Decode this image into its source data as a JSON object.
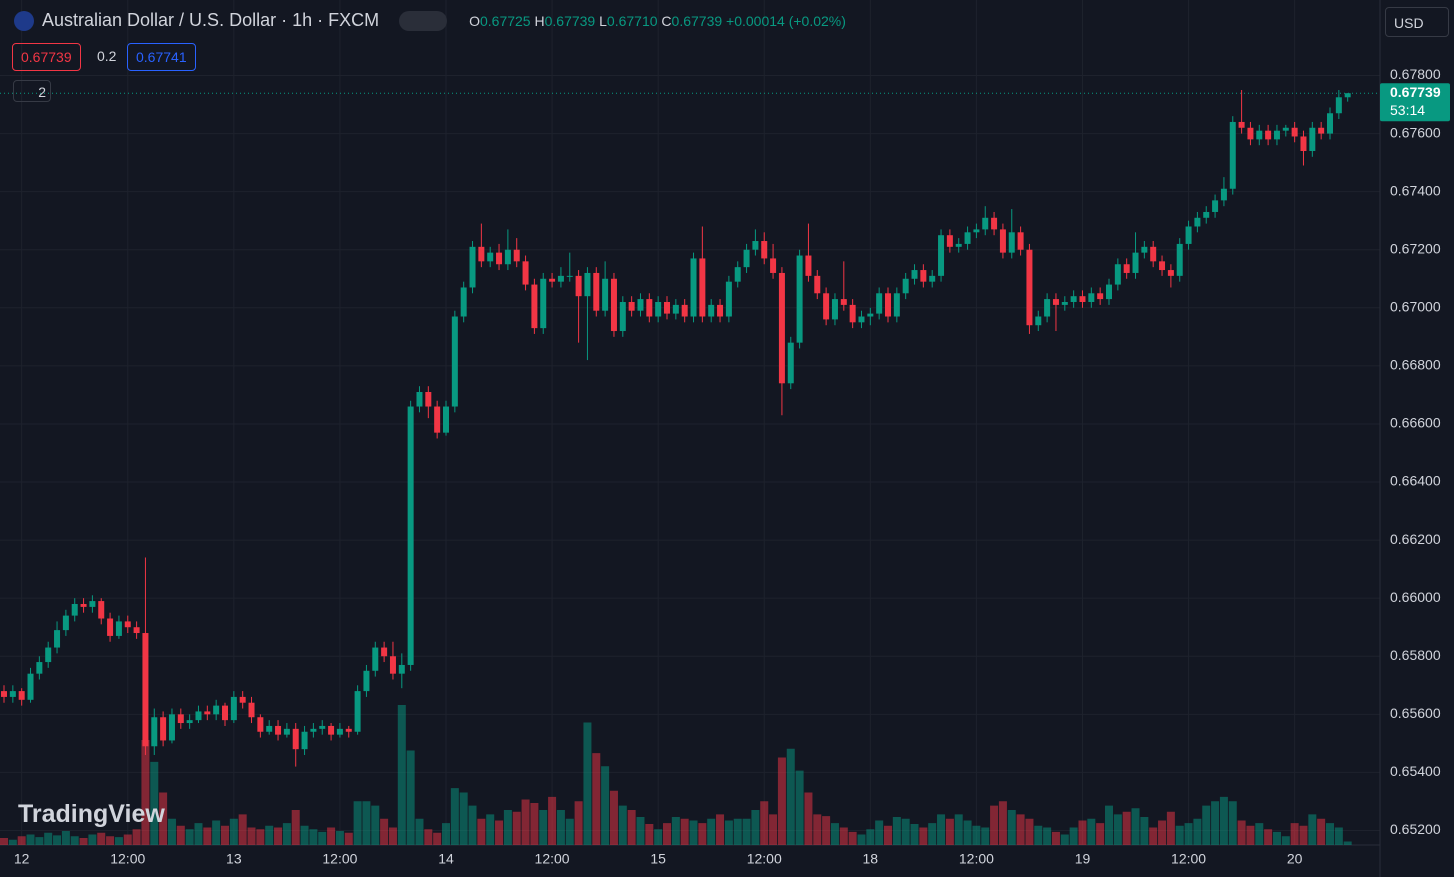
{
  "header": {
    "title": "Australian Dollar / U.S. Dollar · 1h · FXCM",
    "o_label": "O",
    "open": "0.67725",
    "h_label": "H",
    "high": "0.67739",
    "l_label": "L",
    "low": "0.67710",
    "c_label": "C",
    "close": "0.67739",
    "change": "+0.00014 (+0.02%)",
    "bid": "0.67739",
    "spread": "0.2",
    "ask": "0.67741",
    "indicators_count": "2",
    "currency": "USD",
    "logo": "TradingView"
  },
  "chart_data": {
    "type": "candlestick",
    "up_color": "#089981",
    "down_color": "#f23645",
    "grid": true,
    "last_price": {
      "value": 0.67739,
      "label": "0.67739"
    },
    "countdown": "53:14",
    "ylim": [
      0.6515,
      0.6806
    ],
    "yticks": [
      {
        "value": 0.652,
        "label": "0.65200"
      },
      {
        "value": 0.654,
        "label": "0.65400"
      },
      {
        "value": 0.656,
        "label": "0.65600"
      },
      {
        "value": 0.658,
        "label": "0.65800"
      },
      {
        "value": 0.66,
        "label": "0.66000"
      },
      {
        "value": 0.662,
        "label": "0.66200"
      },
      {
        "value": 0.664,
        "label": "0.66400"
      },
      {
        "value": 0.666,
        "label": "0.66600"
      },
      {
        "value": 0.668,
        "label": "0.66800"
      },
      {
        "value": 0.67,
        "label": "0.67000"
      },
      {
        "value": 0.672,
        "label": "0.67200"
      },
      {
        "value": 0.674,
        "label": "0.67400"
      },
      {
        "value": 0.676,
        "label": "0.67600"
      },
      {
        "value": 0.678,
        "label": "0.67800"
      }
    ],
    "categories": [
      null,
      null,
      "12",
      null,
      null,
      null,
      null,
      null,
      null,
      null,
      null,
      null,
      null,
      null,
      "12:00",
      null,
      null,
      null,
      null,
      null,
      null,
      null,
      null,
      null,
      null,
      null,
      "13",
      null,
      null,
      null,
      null,
      null,
      null,
      null,
      null,
      null,
      null,
      null,
      "12:00",
      null,
      null,
      null,
      null,
      null,
      null,
      null,
      null,
      null,
      null,
      null,
      "14",
      null,
      null,
      null,
      null,
      null,
      null,
      null,
      null,
      null,
      null,
      null,
      "12:00",
      null,
      null,
      null,
      null,
      null,
      null,
      null,
      null,
      null,
      null,
      null,
      "15",
      null,
      null,
      null,
      null,
      null,
      null,
      null,
      null,
      null,
      null,
      null,
      "12:00",
      null,
      null,
      null,
      null,
      null,
      null,
      null,
      null,
      null,
      null,
      null,
      "18",
      null,
      null,
      null,
      null,
      null,
      null,
      null,
      null,
      null,
      null,
      null,
      "12:00",
      null,
      null,
      null,
      null,
      null,
      null,
      null,
      null,
      null,
      null,
      null,
      "19",
      null,
      null,
      null,
      null,
      null,
      null,
      null,
      null,
      null,
      null,
      null,
      "12:00",
      null,
      null,
      null,
      null,
      null,
      null,
      null,
      null,
      null,
      null,
      null,
      "20",
      null,
      null,
      null,
      null,
      null,
      null
    ],
    "ohlc": [
      [
        0.6568,
        0.657,
        0.6564,
        0.6566
      ],
      [
        0.6566,
        0.657,
        0.6564,
        0.6568
      ],
      [
        0.6568,
        0.6569,
        0.6563,
        0.6565
      ],
      [
        0.6565,
        0.6576,
        0.6564,
        0.6574
      ],
      [
        0.6574,
        0.658,
        0.6572,
        0.6578
      ],
      [
        0.6578,
        0.6585,
        0.6576,
        0.6583
      ],
      [
        0.6583,
        0.6592,
        0.6581,
        0.6589
      ],
      [
        0.6589,
        0.6596,
        0.6587,
        0.6594
      ],
      [
        0.6594,
        0.66,
        0.6592,
        0.6598
      ],
      [
        0.6598,
        0.66,
        0.6595,
        0.6597
      ],
      [
        0.6597,
        0.6601,
        0.6595,
        0.6599
      ],
      [
        0.6599,
        0.66,
        0.6591,
        0.6593
      ],
      [
        0.6593,
        0.6595,
        0.6585,
        0.6587
      ],
      [
        0.6587,
        0.6594,
        0.6586,
        0.6592
      ],
      [
        0.6592,
        0.6594,
        0.6588,
        0.659
      ],
      [
        0.659,
        0.6592,
        0.6586,
        0.6588
      ],
      [
        0.6588,
        0.6614,
        0.6546,
        0.6549
      ],
      [
        0.6549,
        0.6562,
        0.6546,
        0.6559
      ],
      [
        0.6559,
        0.6561,
        0.6549,
        0.6551
      ],
      [
        0.6551,
        0.6562,
        0.655,
        0.656
      ],
      [
        0.656,
        0.6562,
        0.6555,
        0.6557
      ],
      [
        0.6557,
        0.656,
        0.6555,
        0.6558
      ],
      [
        0.6558,
        0.6563,
        0.6557,
        0.6561
      ],
      [
        0.6561,
        0.6563,
        0.6558,
        0.656
      ],
      [
        0.656,
        0.6565,
        0.6558,
        0.6563
      ],
      [
        0.6563,
        0.6564,
        0.6556,
        0.6558
      ],
      [
        0.6558,
        0.6568,
        0.6557,
        0.6566
      ],
      [
        0.6566,
        0.6568,
        0.6562,
        0.6564
      ],
      [
        0.6564,
        0.6566,
        0.6557,
        0.6559
      ],
      [
        0.6559,
        0.656,
        0.6552,
        0.6554
      ],
      [
        0.6554,
        0.6558,
        0.6553,
        0.6556
      ],
      [
        0.6556,
        0.6558,
        0.6551,
        0.6553
      ],
      [
        0.6553,
        0.6557,
        0.6552,
        0.6555
      ],
      [
        0.6555,
        0.6557,
        0.6542,
        0.6548
      ],
      [
        0.6548,
        0.6556,
        0.6546,
        0.6554
      ],
      [
        0.6554,
        0.6557,
        0.6552,
        0.6555
      ],
      [
        0.6555,
        0.6558,
        0.6553,
        0.6556
      ],
      [
        0.6556,
        0.6557,
        0.6551,
        0.6553
      ],
      [
        0.6553,
        0.6557,
        0.6552,
        0.6555
      ],
      [
        0.6555,
        0.6556,
        0.6552,
        0.6554
      ],
      [
        0.6554,
        0.657,
        0.6553,
        0.6568
      ],
      [
        0.6568,
        0.6577,
        0.6566,
        0.6575
      ],
      [
        0.6575,
        0.6585,
        0.6573,
        0.6583
      ],
      [
        0.6583,
        0.6585,
        0.6578,
        0.658
      ],
      [
        0.658,
        0.6585,
        0.6572,
        0.6574
      ],
      [
        0.6574,
        0.6581,
        0.6569,
        0.6577
      ],
      [
        0.6577,
        0.6668,
        0.6575,
        0.6666
      ],
      [
        0.6666,
        0.6673,
        0.6664,
        0.6671
      ],
      [
        0.6671,
        0.6673,
        0.6662,
        0.6666
      ],
      [
        0.6666,
        0.6668,
        0.6655,
        0.6657
      ],
      [
        0.6657,
        0.6668,
        0.6656,
        0.6666
      ],
      [
        0.6666,
        0.6699,
        0.6664,
        0.6697
      ],
      [
        0.6697,
        0.6709,
        0.6695,
        0.6707
      ],
      [
        0.6707,
        0.6723,
        0.6705,
        0.6721
      ],
      [
        0.6721,
        0.6729,
        0.6714,
        0.6716
      ],
      [
        0.6716,
        0.6721,
        0.6714,
        0.6719
      ],
      [
        0.6719,
        0.6722,
        0.6713,
        0.6715
      ],
      [
        0.6715,
        0.6727,
        0.6713,
        0.672
      ],
      [
        0.672,
        0.6724,
        0.6714,
        0.6716
      ],
      [
        0.6716,
        0.6718,
        0.6706,
        0.6708
      ],
      [
        0.6708,
        0.671,
        0.6691,
        0.6693
      ],
      [
        0.6693,
        0.6712,
        0.6691,
        0.671
      ],
      [
        0.671,
        0.6712,
        0.6707,
        0.6709
      ],
      [
        0.6709,
        0.6714,
        0.6707,
        0.6711
      ],
      [
        0.6711,
        0.6719,
        0.6709,
        0.6711
      ],
      [
        0.6711,
        0.6713,
        0.6688,
        0.6704
      ],
      [
        0.6704,
        0.6714,
        0.6682,
        0.6712
      ],
      [
        0.6712,
        0.6714,
        0.6697,
        0.6699
      ],
      [
        0.6699,
        0.6716,
        0.6697,
        0.671
      ],
      [
        0.671,
        0.6712,
        0.669,
        0.6692
      ],
      [
        0.6692,
        0.6704,
        0.669,
        0.6702
      ],
      [
        0.6702,
        0.6704,
        0.6697,
        0.6699
      ],
      [
        0.6699,
        0.6705,
        0.6697,
        0.6703
      ],
      [
        0.6703,
        0.6705,
        0.6695,
        0.6697
      ],
      [
        0.6697,
        0.6704,
        0.6695,
        0.6702
      ],
      [
        0.6702,
        0.6704,
        0.6696,
        0.6698
      ],
      [
        0.6698,
        0.6703,
        0.6696,
        0.6701
      ],
      [
        0.6701,
        0.6703,
        0.6695,
        0.6697
      ],
      [
        0.6697,
        0.6719,
        0.6695,
        0.6717
      ],
      [
        0.6717,
        0.6728,
        0.6695,
        0.6697
      ],
      [
        0.6697,
        0.6703,
        0.6695,
        0.6701
      ],
      [
        0.6701,
        0.6703,
        0.6695,
        0.6697
      ],
      [
        0.6697,
        0.6711,
        0.6695,
        0.6709
      ],
      [
        0.6709,
        0.6716,
        0.6707,
        0.6714
      ],
      [
        0.6714,
        0.6722,
        0.6712,
        0.672
      ],
      [
        0.672,
        0.6727,
        0.6718,
        0.6723
      ],
      [
        0.6723,
        0.6726,
        0.6715,
        0.6717
      ],
      [
        0.6717,
        0.6722,
        0.671,
        0.6712
      ],
      [
        0.6712,
        0.6714,
        0.6663,
        0.6674
      ],
      [
        0.6674,
        0.669,
        0.6672,
        0.6688
      ],
      [
        0.6688,
        0.672,
        0.6686,
        0.6718
      ],
      [
        0.6718,
        0.6729,
        0.6709,
        0.6711
      ],
      [
        0.6711,
        0.6713,
        0.6703,
        0.6705
      ],
      [
        0.6705,
        0.6707,
        0.6694,
        0.6696
      ],
      [
        0.6696,
        0.6705,
        0.6694,
        0.6703
      ],
      [
        0.6703,
        0.6716,
        0.6699,
        0.6701
      ],
      [
        0.6701,
        0.6703,
        0.6693,
        0.6695
      ],
      [
        0.6695,
        0.6699,
        0.6693,
        0.6697
      ],
      [
        0.6697,
        0.67,
        0.6694,
        0.6698
      ],
      [
        0.6698,
        0.6707,
        0.6696,
        0.6705
      ],
      [
        0.6705,
        0.6707,
        0.6695,
        0.6697
      ],
      [
        0.6697,
        0.6707,
        0.6695,
        0.6705
      ],
      [
        0.6705,
        0.6712,
        0.6703,
        0.671
      ],
      [
        0.671,
        0.6715,
        0.6708,
        0.6713
      ],
      [
        0.6713,
        0.6715,
        0.6707,
        0.6709
      ],
      [
        0.6709,
        0.6713,
        0.6707,
        0.6711
      ],
      [
        0.6711,
        0.6727,
        0.6709,
        0.6725
      ],
      [
        0.6725,
        0.6727,
        0.6719,
        0.6721
      ],
      [
        0.6721,
        0.6724,
        0.6719,
        0.6722
      ],
      [
        0.6722,
        0.6728,
        0.672,
        0.6726
      ],
      [
        0.6726,
        0.6729,
        0.6724,
        0.6727
      ],
      [
        0.6727,
        0.6735,
        0.6725,
        0.6731
      ],
      [
        0.6731,
        0.6733,
        0.6725,
        0.6727
      ],
      [
        0.6727,
        0.6729,
        0.6717,
        0.6719
      ],
      [
        0.6719,
        0.6734,
        0.6717,
        0.6726
      ],
      [
        0.6726,
        0.6728,
        0.6718,
        0.672
      ],
      [
        0.672,
        0.6722,
        0.6691,
        0.6694
      ],
      [
        0.6694,
        0.6699,
        0.6692,
        0.6697
      ],
      [
        0.6697,
        0.6705,
        0.6695,
        0.6703
      ],
      [
        0.6703,
        0.6705,
        0.6692,
        0.6701
      ],
      [
        0.6701,
        0.6704,
        0.6699,
        0.6702
      ],
      [
        0.6702,
        0.6706,
        0.67,
        0.6704
      ],
      [
        0.6704,
        0.6706,
        0.67,
        0.6702
      ],
      [
        0.6702,
        0.6707,
        0.67,
        0.6705
      ],
      [
        0.6705,
        0.6707,
        0.6701,
        0.6703
      ],
      [
        0.6703,
        0.671,
        0.6701,
        0.6708
      ],
      [
        0.6708,
        0.6717,
        0.6706,
        0.6715
      ],
      [
        0.6715,
        0.6717,
        0.671,
        0.6712
      ],
      [
        0.6712,
        0.6726,
        0.671,
        0.6719
      ],
      [
        0.6719,
        0.6723,
        0.6717,
        0.6721
      ],
      [
        0.6721,
        0.6723,
        0.6714,
        0.6716
      ],
      [
        0.6716,
        0.6718,
        0.6711,
        0.6713
      ],
      [
        0.6713,
        0.6715,
        0.6707,
        0.6711
      ],
      [
        0.6711,
        0.6724,
        0.6709,
        0.6722
      ],
      [
        0.6722,
        0.673,
        0.672,
        0.6728
      ],
      [
        0.6728,
        0.6733,
        0.6726,
        0.6731
      ],
      [
        0.6731,
        0.6735,
        0.6729,
        0.6733
      ],
      [
        0.6733,
        0.6739,
        0.6731,
        0.6737
      ],
      [
        0.6737,
        0.6745,
        0.6735,
        0.6741
      ],
      [
        0.6741,
        0.6766,
        0.6739,
        0.6764
      ],
      [
        0.6764,
        0.6775,
        0.676,
        0.6762
      ],
      [
        0.6762,
        0.6764,
        0.6756,
        0.6758
      ],
      [
        0.6758,
        0.6763,
        0.6756,
        0.6761
      ],
      [
        0.6761,
        0.6763,
        0.6756,
        0.6758
      ],
      [
        0.6758,
        0.6763,
        0.6756,
        0.6761
      ],
      [
        0.6761,
        0.6763,
        0.6759,
        0.6762
      ],
      [
        0.6762,
        0.6764,
        0.6757,
        0.6759
      ],
      [
        0.6759,
        0.6761,
        0.6749,
        0.6754
      ],
      [
        0.6754,
        0.6764,
        0.6752,
        0.6762
      ],
      [
        0.6762,
        0.6764,
        0.6758,
        0.676
      ],
      [
        0.676,
        0.6769,
        0.6758,
        0.6767
      ],
      [
        0.6767,
        0.6775,
        0.6765,
        0.67725
      ],
      [
        0.67725,
        0.67739,
        0.6771,
        0.67739
      ]
    ],
    "volume": [
      8,
      6,
      10,
      12,
      9,
      14,
      11,
      16,
      10,
      8,
      12,
      14,
      10,
      9,
      12,
      18,
      120,
      95,
      60,
      30,
      22,
      18,
      25,
      20,
      28,
      22,
      30,
      35,
      20,
      18,
      22,
      20,
      25,
      40,
      22,
      18,
      15,
      20,
      16,
      14,
      50,
      50,
      45,
      30,
      20,
      160,
      108,
      30,
      18,
      14,
      25,
      65,
      60,
      45,
      30,
      35,
      28,
      40,
      38,
      52,
      48,
      40,
      55,
      40,
      30,
      50,
      140,
      105,
      90,
      62,
      45,
      40,
      32,
      24,
      18,
      25,
      32,
      30,
      28,
      25,
      30,
      35,
      28,
      30,
      30,
      40,
      50,
      35,
      100,
      110,
      85,
      60,
      35,
      33,
      25,
      20,
      15,
      12,
      18,
      28,
      22,
      32,
      30,
      24,
      20,
      25,
      35,
      30,
      35,
      28,
      22,
      20,
      45,
      50,
      40,
      35,
      30,
      22,
      20,
      15,
      12,
      20,
      28,
      30,
      25,
      45,
      35,
      38,
      42,
      32,
      20,
      28,
      38,
      22,
      25,
      30,
      45,
      50,
      55,
      50,
      28,
      22,
      25,
      18,
      15,
      10,
      25,
      22,
      35,
      30,
      25,
      20,
      4
    ]
  }
}
